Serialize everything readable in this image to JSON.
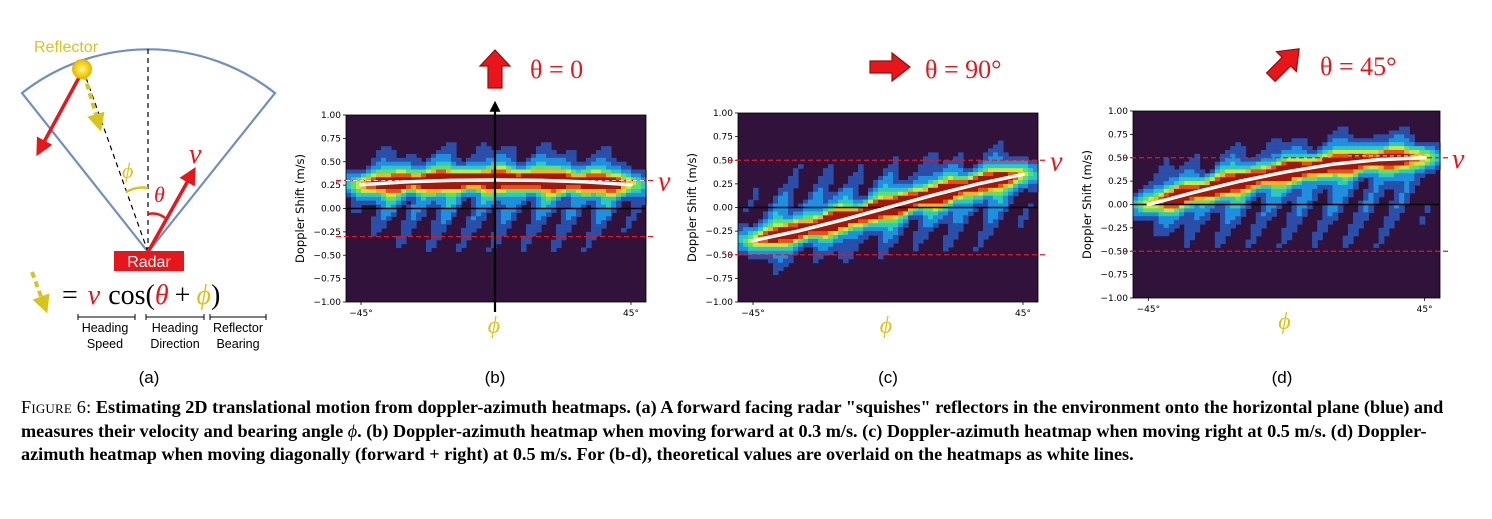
{
  "panel_a": {
    "reflector_label": "Reflector",
    "radar_label": "Radar",
    "v_symbol": "v",
    "phi_symbol": "ϕ",
    "theta_symbol": "θ",
    "equation": {
      "eq": "=",
      "v": "v",
      "cos": "cos(",
      "theta": "θ",
      "plus": "+",
      "phi": "ϕ",
      "close": ")"
    },
    "labels": [
      {
        "line1": "Heading",
        "line2": "Speed"
      },
      {
        "line1": "Heading",
        "line2": "Direction"
      },
      {
        "line1": "Reflector",
        "line2": "Bearing"
      }
    ],
    "sublabel": "(a)"
  },
  "chart_data": [
    {
      "type": "heatmap",
      "panel": "(b)",
      "heading_label": "θ = 0",
      "heading_angle_deg": 0,
      "ylabel": "Doppler Shift (m/s)",
      "xlabel": "ϕ",
      "x_ticks": [
        "−45°",
        "45°"
      ],
      "y_ticks": [
        "1.00",
        "0.75",
        "0.50",
        "0.25",
        "0.00",
        "−0.25",
        "−0.50",
        "−0.75",
        "−1.00"
      ],
      "ylim": [
        -1.0,
        1.0
      ],
      "xlim": [
        -50,
        50
      ],
      "speed": 0.3,
      "velocity_label": "v",
      "dashed_levels": [
        0.3,
        -0.3
      ],
      "theory_curve": {
        "x": [
          -45,
          -30,
          -15,
          0,
          15,
          30,
          45
        ],
        "y": [
          0.255,
          0.284,
          0.3,
          0.305,
          0.3,
          0.284,
          0.255
        ]
      }
    },
    {
      "type": "heatmap",
      "panel": "(c)",
      "heading_label": "θ = 90°",
      "heading_angle_deg": 90,
      "ylabel": "Doppler Shift (m/s)",
      "xlabel": "ϕ",
      "x_ticks": [
        "−45°",
        "45°"
      ],
      "y_ticks": [
        "1.00",
        "0.75",
        "0.50",
        "0.25",
        "0.00",
        "−0.25",
        "−0.50",
        "−0.75",
        "−1.00"
      ],
      "ylim": [
        -1.0,
        1.0
      ],
      "xlim": [
        -50,
        50
      ],
      "speed": 0.5,
      "velocity_label": "v",
      "dashed_levels": [
        0.5,
        -0.5
      ],
      "theory_curve": {
        "x": [
          -45,
          -30,
          -15,
          0,
          15,
          30,
          45
        ],
        "y": [
          -0.35,
          -0.25,
          -0.13,
          0.0,
          0.13,
          0.25,
          0.35
        ]
      }
    },
    {
      "type": "heatmap",
      "panel": "(d)",
      "heading_label": "θ = 45°",
      "heading_angle_deg": 45,
      "ylabel": "Doppler Shift (m/s)",
      "xlabel": "ϕ",
      "x_ticks": [
        "−45°",
        "45°"
      ],
      "y_ticks": [
        "1.00",
        "0.75",
        "0.50",
        "0.25",
        "0.00",
        "−0.25",
        "−0.50",
        "−0.75",
        "−1.00"
      ],
      "ylim": [
        -1.0,
        1.0
      ],
      "xlim": [
        -50,
        50
      ],
      "speed": 0.5,
      "velocity_label": "v",
      "dashed_levels": [
        0.5,
        -0.5
      ],
      "theory_curve": {
        "x": [
          -45,
          -30,
          -15,
          0,
          15,
          30,
          45
        ],
        "y": [
          0.0,
          0.13,
          0.25,
          0.35,
          0.43,
          0.48,
          0.5
        ]
      }
    }
  ],
  "caption": {
    "figure_label": "Figure 6:",
    "text_1": "Estimating 2D translational motion from doppler-azimuth heatmaps. (a) A forward facing radar \"squishes\" reflectors in the environment onto the horizontal plane (blue) and measures their velocity and bearing angle",
    "phi": "ϕ",
    "text_2": ". (b) Doppler-azimuth heatmap when moving forward at 0.3 m/s. (c) Doppler-azimuth heatmap when moving right at 0.5 m/s. (d) Doppler-azimuth heatmap when moving diagonally (forward + right) at 0.5 m/s. For (b-d), theoretical values are overlaid on the heatmaps as white lines."
  }
}
